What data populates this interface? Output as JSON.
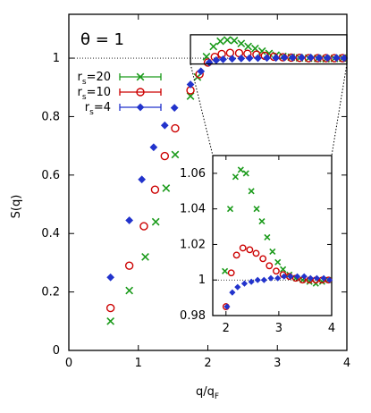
{
  "chart_data": {
    "type": "scatter",
    "annotation": "θ = 1",
    "xlabel": "q/q",
    "xlabel_sub": "F",
    "ylabel": "S(q)",
    "xlim": [
      0,
      4
    ],
    "ylim": [
      0,
      1.15
    ],
    "xticks": [
      "0",
      "1",
      "2",
      "3",
      "4"
    ],
    "yticks": [
      "0",
      "0.2",
      "0.4",
      "0.6",
      "0.8",
      "1"
    ],
    "grid": false,
    "legend_position": "top-left",
    "reference_line_y": 1,
    "series": [
      {
        "name": "rs=20",
        "label_main": "r",
        "label_sub": "s",
        "label_value": "=20",
        "marker": "x",
        "color": "#1a9a1a",
        "x": [
          0.6,
          0.87,
          1.1,
          1.25,
          1.4,
          1.53,
          1.75,
          1.85,
          1.98,
          2.08,
          2.18,
          2.28,
          2.38,
          2.48,
          2.58,
          2.68,
          2.78,
          2.88,
          2.98,
          3.08,
          3.2,
          3.32,
          3.45,
          3.58,
          3.7,
          3.82,
          3.94
        ],
        "y": [
          0.1,
          0.205,
          0.32,
          0.44,
          0.555,
          0.67,
          0.87,
          0.935,
          1.005,
          1.04,
          1.058,
          1.062,
          1.06,
          1.05,
          1.04,
          1.033,
          1.024,
          1.016,
          1.01,
          1.006,
          1.003,
          1.001,
          1.0,
          0.999,
          0.998,
          0.999,
          1.0
        ]
      },
      {
        "name": "rs=10",
        "label_main": "r",
        "label_sub": "s",
        "label_value": "=10",
        "marker": "circle",
        "color": "#cc0000",
        "x": [
          0.6,
          0.87,
          1.08,
          1.24,
          1.38,
          1.53,
          1.75,
          1.88,
          2.0,
          2.1,
          2.2,
          2.32,
          2.45,
          2.57,
          2.7,
          2.82,
          2.95,
          3.08,
          3.2,
          3.32,
          3.45,
          3.58,
          3.7,
          3.82,
          3.94
        ],
        "y": [
          0.145,
          0.29,
          0.425,
          0.55,
          0.665,
          0.76,
          0.89,
          0.945,
          0.985,
          1.004,
          1.014,
          1.018,
          1.017,
          1.015,
          1.012,
          1.008,
          1.005,
          1.003,
          1.002,
          1.001,
          1.0,
          1.0,
          1.0,
          1.0,
          1.0
        ]
      },
      {
        "name": "rs=4",
        "label_main": "r",
        "label_sub": "s",
        "label_value": "=4",
        "marker": "diamond",
        "color": "#2233cc",
        "x": [
          0.6,
          0.87,
          1.05,
          1.22,
          1.38,
          1.52,
          1.75,
          1.9,
          2.02,
          2.12,
          2.22,
          2.35,
          2.48,
          2.6,
          2.72,
          2.85,
          2.98,
          3.1,
          3.22,
          3.35,
          3.48,
          3.6,
          3.72,
          3.85,
          3.96
        ],
        "y": [
          0.25,
          0.445,
          0.585,
          0.695,
          0.77,
          0.83,
          0.91,
          0.955,
          0.985,
          0.993,
          0.996,
          0.998,
          0.999,
          1.0,
          1.0,
          1.001,
          1.001,
          1.002,
          1.002,
          1.002,
          1.002,
          1.001,
          1.001,
          1.001,
          1.0
        ]
      }
    ],
    "inset": {
      "xlim": [
        1.75,
        4
      ],
      "ylim": [
        0.98,
        1.07
      ],
      "xticks": [
        "2",
        "3",
        "4"
      ],
      "yticks": [
        "0.98",
        "1",
        "1.02",
        "1.04",
        "1.06"
      ],
      "zoom_region_x": [
        1.75,
        4
      ],
      "zoom_region_y": [
        0.98,
        1.08
      ]
    }
  }
}
